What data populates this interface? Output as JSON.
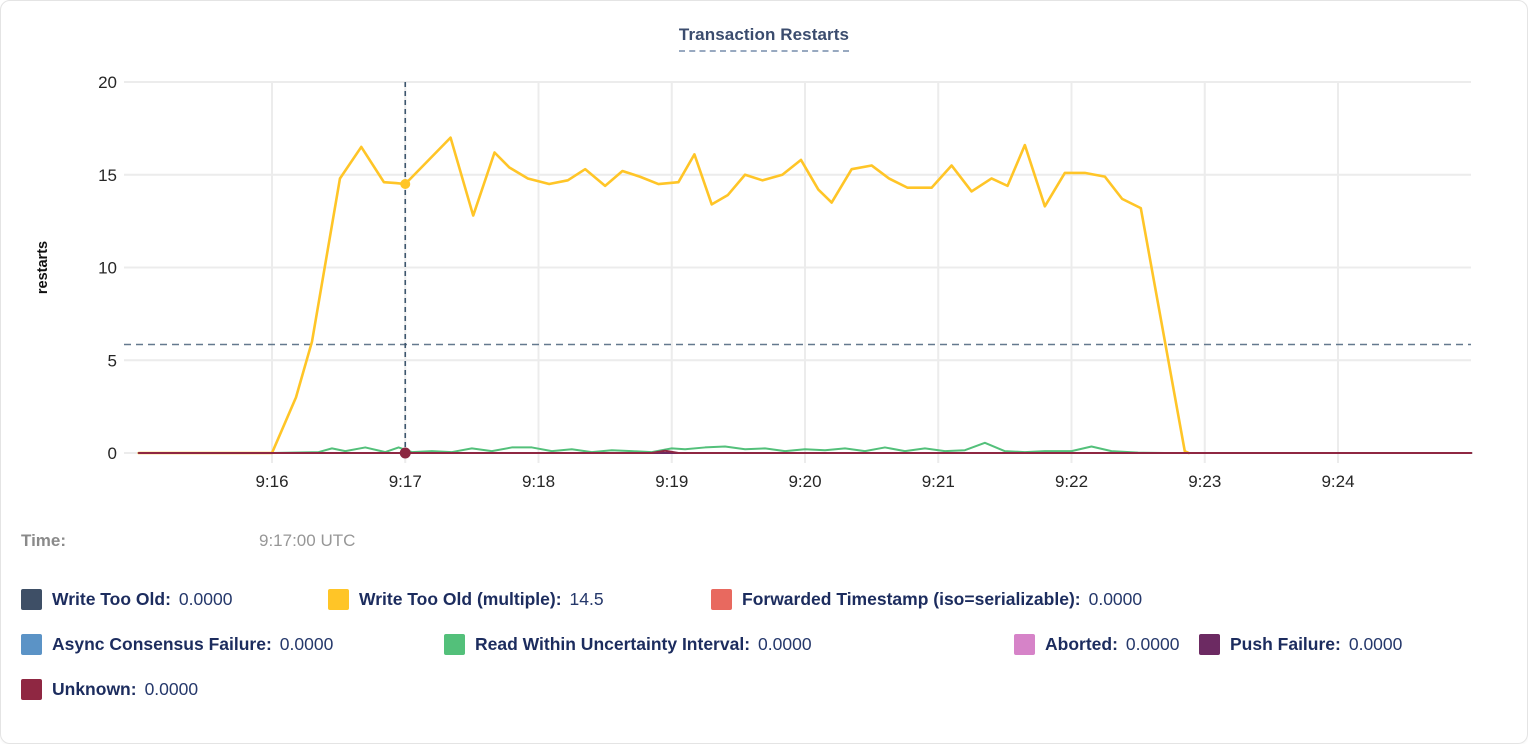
{
  "title": "Transaction Restarts",
  "time_row": {
    "label": "Time:",
    "value": "9:17:00 UTC"
  },
  "colors": {
    "title_text": "#3b4c6e",
    "legend_text": "#1c2c5e",
    "axis_text": "#262626",
    "gridline": "#ececec",
    "mean_dashed_line": "#64798e",
    "hover_dashed_line": "#3d566e",
    "time_text": "#8d8d8d"
  },
  "chart_data": {
    "type": "line",
    "title": "Transaction Restarts",
    "xlabel": "",
    "ylabel": "restarts",
    "x_unit": "minutes after 9:15 UTC",
    "x_ticks": [
      1,
      2,
      3,
      4,
      5,
      6,
      7,
      8,
      9
    ],
    "x_tick_labels": [
      "9:16",
      "9:17",
      "9:18",
      "9:19",
      "9:20",
      "9:21",
      "9:22",
      "9:23",
      "9:24"
    ],
    "xlim_minutes": [
      -0.1,
      10
    ],
    "y_ticks": [
      0,
      5,
      10,
      15,
      20
    ],
    "ylim": [
      0,
      20
    ],
    "grid": true,
    "legend_position": "bottom",
    "mean_line_value": 5.85,
    "hover": {
      "t": 2,
      "time_label": "9:17:00 UTC",
      "points": [
        {
          "series": "Write Too Old (multiple)",
          "value": 14.5,
          "color": "#ffc527",
          "r": 5
        },
        {
          "series": "Unknown",
          "value": 0,
          "color": "#8b2741",
          "r": 5.5
        }
      ]
    },
    "draw_order": [
      0,
      2,
      3,
      5,
      6,
      4,
      1,
      7
    ],
    "series": [
      {
        "name": "Write Too Old",
        "color": "#3e4f66",
        "current_value": "0.0000",
        "width": 2,
        "points": [
          [
            0,
            0
          ],
          [
            10,
            0
          ]
        ]
      },
      {
        "name": "Write Too Old (multiple)",
        "color": "#ffc527",
        "current_value": "14.5",
        "width": 2.6,
        "points": [
          [
            0,
            0
          ],
          [
            1.0,
            0
          ],
          [
            1.18,
            3.0
          ],
          [
            1.3,
            6.0
          ],
          [
            1.51,
            14.8
          ],
          [
            1.67,
            16.5
          ],
          [
            1.84,
            14.6
          ],
          [
            1.93,
            14.55
          ],
          [
            2.0,
            14.5
          ],
          [
            2.34,
            17.0
          ],
          [
            2.51,
            12.8
          ],
          [
            2.67,
            16.2
          ],
          [
            2.78,
            15.4
          ],
          [
            2.92,
            14.8
          ],
          [
            3.08,
            14.5
          ],
          [
            3.22,
            14.7
          ],
          [
            3.35,
            15.3
          ],
          [
            3.5,
            14.4
          ],
          [
            3.63,
            15.2
          ],
          [
            3.76,
            14.9
          ],
          [
            3.9,
            14.5
          ],
          [
            4.05,
            14.6
          ],
          [
            4.17,
            16.1
          ],
          [
            4.3,
            13.4
          ],
          [
            4.42,
            13.9
          ],
          [
            4.55,
            15.0
          ],
          [
            4.68,
            14.7
          ],
          [
            4.83,
            15.0
          ],
          [
            4.97,
            15.8
          ],
          [
            5.1,
            14.2
          ],
          [
            5.2,
            13.5
          ],
          [
            5.35,
            15.3
          ],
          [
            5.5,
            15.5
          ],
          [
            5.63,
            14.8
          ],
          [
            5.77,
            14.3
          ],
          [
            5.95,
            14.3
          ],
          [
            6.1,
            15.5
          ],
          [
            6.25,
            14.1
          ],
          [
            6.4,
            14.8
          ],
          [
            6.52,
            14.4
          ],
          [
            6.65,
            16.6
          ],
          [
            6.8,
            13.3
          ],
          [
            6.95,
            15.1
          ],
          [
            7.1,
            15.1
          ],
          [
            7.25,
            14.9
          ],
          [
            7.38,
            13.7
          ],
          [
            7.52,
            13.2
          ],
          [
            7.85,
            0.1
          ],
          [
            7.88,
            0
          ]
        ]
      },
      {
        "name": "Forwarded Timestamp (iso=serializable)",
        "color": "#e8695f",
        "current_value": "0.0000",
        "width": 2,
        "points": [
          [
            0,
            0
          ],
          [
            10,
            0
          ]
        ]
      },
      {
        "name": "Async Consensus Failure",
        "color": "#5b93c6",
        "current_value": "0.0000",
        "width": 2,
        "points": [
          [
            0,
            0
          ],
          [
            10,
            0
          ]
        ]
      },
      {
        "name": "Read Within Uncertainty Interval",
        "color": "#53c07a",
        "current_value": "0.0000",
        "width": 2,
        "points": [
          [
            0,
            0
          ],
          [
            1.0,
            0
          ],
          [
            1.35,
            0.05
          ],
          [
            1.45,
            0.25
          ],
          [
            1.55,
            0.1
          ],
          [
            1.7,
            0.3
          ],
          [
            1.85,
            0.05
          ],
          [
            1.95,
            0.3
          ],
          [
            2.05,
            0.05
          ],
          [
            2.2,
            0.1
          ],
          [
            2.35,
            0.05
          ],
          [
            2.5,
            0.25
          ],
          [
            2.65,
            0.1
          ],
          [
            2.8,
            0.3
          ],
          [
            2.95,
            0.3
          ],
          [
            3.1,
            0.1
          ],
          [
            3.25,
            0.2
          ],
          [
            3.4,
            0.05
          ],
          [
            3.55,
            0.15
          ],
          [
            3.7,
            0.1
          ],
          [
            3.85,
            0.05
          ],
          [
            4.0,
            0.25
          ],
          [
            4.1,
            0.2
          ],
          [
            4.25,
            0.3
          ],
          [
            4.4,
            0.35
          ],
          [
            4.55,
            0.2
          ],
          [
            4.7,
            0.25
          ],
          [
            4.85,
            0.1
          ],
          [
            5.0,
            0.2
          ],
          [
            5.15,
            0.15
          ],
          [
            5.3,
            0.25
          ],
          [
            5.45,
            0.1
          ],
          [
            5.6,
            0.3
          ],
          [
            5.75,
            0.1
          ],
          [
            5.9,
            0.25
          ],
          [
            6.05,
            0.1
          ],
          [
            6.2,
            0.15
          ],
          [
            6.35,
            0.55
          ],
          [
            6.5,
            0.1
          ],
          [
            6.65,
            0.05
          ],
          [
            6.8,
            0.1
          ],
          [
            7.0,
            0.1
          ],
          [
            7.15,
            0.35
          ],
          [
            7.3,
            0.1
          ],
          [
            7.5,
            0.02
          ],
          [
            7.7,
            0
          ],
          [
            10,
            0
          ]
        ]
      },
      {
        "name": "Aborted",
        "color": "#d683c8",
        "current_value": "0.0000",
        "width": 2,
        "points": [
          [
            0,
            0
          ],
          [
            10,
            0
          ]
        ]
      },
      {
        "name": "Push Failure",
        "color": "#6c2a62",
        "current_value": "0.0000",
        "width": 2,
        "points": [
          [
            0,
            0
          ],
          [
            10,
            0
          ]
        ]
      },
      {
        "name": "Unknown",
        "color": "#8f2742",
        "current_value": "0.0000",
        "width": 2,
        "points": [
          [
            0,
            0
          ],
          [
            3.85,
            0
          ],
          [
            3.95,
            0.12
          ],
          [
            4.05,
            0
          ],
          [
            10,
            0
          ]
        ]
      }
    ]
  },
  "legend": {
    "row_groups": [
      [
        0,
        1,
        2
      ],
      [
        3,
        4,
        5,
        6
      ],
      [
        7
      ]
    ]
  }
}
